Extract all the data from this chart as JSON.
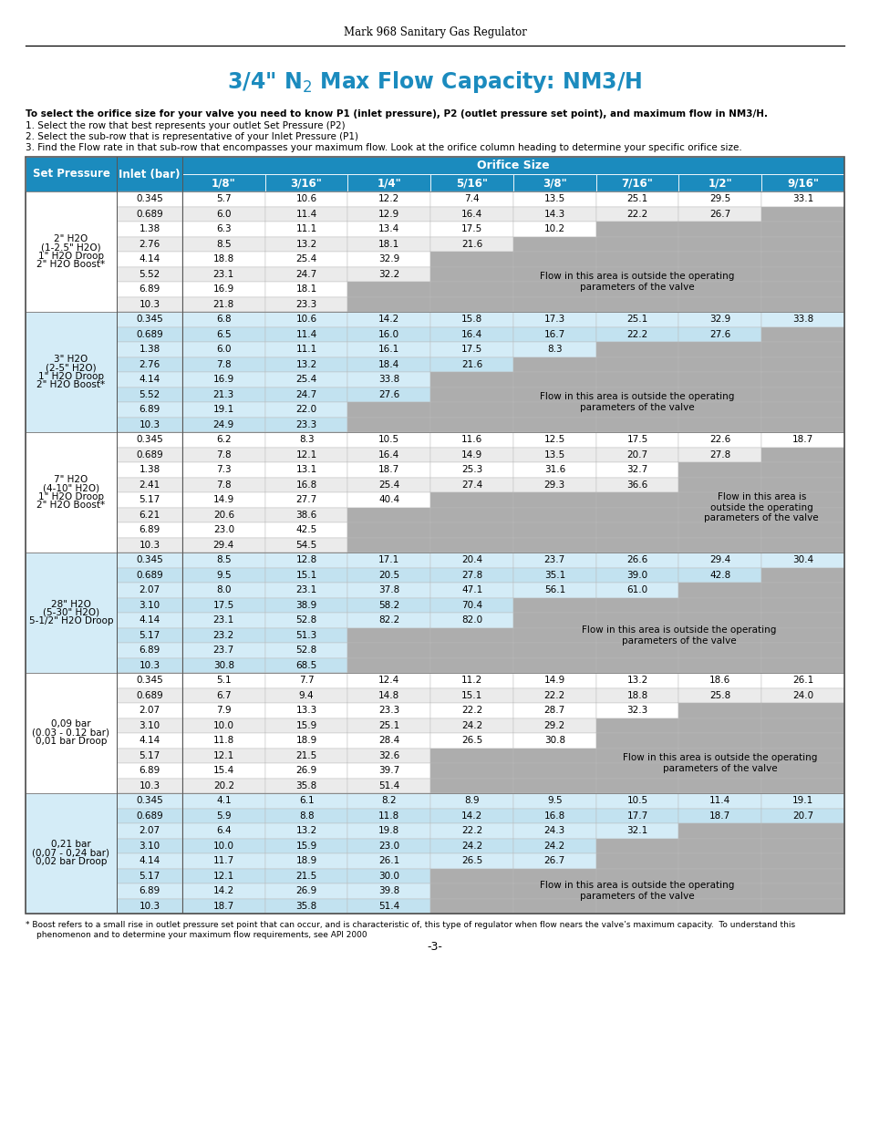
{
  "page_title": "Mark 968 Sanitary Gas Regulator",
  "header_bg": "#1B8BBE",
  "gray_bg": "#ADADAD",
  "row_bg_even_a": "#FFFFFF",
  "row_bg_odd_a": "#EBEBEB",
  "row_bg_even_b": "#D6EEF8",
  "row_bg_odd_b": "#C4E3F3",
  "footnote1": "* Boost refers to a small rise in outlet pressure set point that can occur, and is characteristic of, this type of regulator when flow nears the valve’s maximum capacity.  To understand this",
  "footnote2": "phenomenon and to determine your maximum flow requirements, see API 2000",
  "page_number": "-3-",
  "orifice_sizes": [
    "1/8\"",
    "3/16\"",
    "1/4\"",
    "5/16\"",
    "3/8\"",
    "7/16\"",
    "1/2\"",
    "9/16\""
  ],
  "sections": [
    {
      "label": [
        "2\" H2O",
        "(1-2.5\" H2O)",
        "1\" H2O Droop",
        "2\" H2O Boost*"
      ],
      "rows": [
        {
          "inlet": "0.345",
          "vals": [
            "5.7",
            "10.6",
            "12.2",
            "7.4",
            "13.5",
            "25.1",
            "29.5",
            "33.1"
          ],
          "gf": 99
        },
        {
          "inlet": "0.689",
          "vals": [
            "6.0",
            "11.4",
            "12.9",
            "16.4",
            "14.3",
            "22.2",
            "26.7",
            ""
          ],
          "gf": 7
        },
        {
          "inlet": "1.38",
          "vals": [
            "6.3",
            "11.1",
            "13.4",
            "17.5",
            "10.2",
            "",
            "",
            ""
          ],
          "gf": 5
        },
        {
          "inlet": "2.76",
          "vals": [
            "8.5",
            "13.2",
            "18.1",
            "21.6",
            "",
            "",
            "",
            ""
          ],
          "gf": 4
        },
        {
          "inlet": "4.14",
          "vals": [
            "18.8",
            "25.4",
            "32.9",
            "",
            "",
            "",
            "",
            ""
          ],
          "gf": 3
        },
        {
          "inlet": "5.52",
          "vals": [
            "23.1",
            "24.7",
            "32.2",
            "",
            "",
            "",
            "",
            ""
          ],
          "gf": 3
        },
        {
          "inlet": "6.89",
          "vals": [
            "16.9",
            "18.1",
            "",
            "",
            "",
            "",
            "",
            ""
          ],
          "gf": 2
        },
        {
          "inlet": "10.3",
          "vals": [
            "21.8",
            "23.3",
            "",
            "",
            "",
            "",
            "",
            ""
          ],
          "gf": 2
        }
      ],
      "flow_text": "Flow in this area is outside the operating\nparameters of the valve",
      "frs": 4,
      "fre": 7,
      "fcs": 3
    },
    {
      "label": [
        "3\" H2O",
        "(2-5\" H2O)",
        "1\" H2O Droop",
        "2\" H2O Boost*"
      ],
      "rows": [
        {
          "inlet": "0.345",
          "vals": [
            "6.8",
            "10.6",
            "14.2",
            "15.8",
            "17.3",
            "25.1",
            "32.9",
            "33.8"
          ],
          "gf": 99
        },
        {
          "inlet": "0.689",
          "vals": [
            "6.5",
            "11.4",
            "16.0",
            "16.4",
            "16.7",
            "22.2",
            "27.6",
            ""
          ],
          "gf": 7
        },
        {
          "inlet": "1.38",
          "vals": [
            "6.0",
            "11.1",
            "16.1",
            "17.5",
            "8.3",
            "",
            "",
            ""
          ],
          "gf": 5
        },
        {
          "inlet": "2.76",
          "vals": [
            "7.8",
            "13.2",
            "18.4",
            "21.6",
            "",
            "",
            "",
            ""
          ],
          "gf": 4
        },
        {
          "inlet": "4.14",
          "vals": [
            "16.9",
            "25.4",
            "33.8",
            "",
            "",
            "",
            "",
            ""
          ],
          "gf": 3
        },
        {
          "inlet": "5.52",
          "vals": [
            "21.3",
            "24.7",
            "27.6",
            "",
            "",
            "",
            "",
            ""
          ],
          "gf": 3
        },
        {
          "inlet": "6.89",
          "vals": [
            "19.1",
            "22.0",
            "",
            "",
            "",
            "",
            "",
            ""
          ],
          "gf": 2
        },
        {
          "inlet": "10.3",
          "vals": [
            "24.9",
            "23.3",
            "",
            "",
            "",
            "",
            "",
            ""
          ],
          "gf": 2
        }
      ],
      "flow_text": "Flow in this area is outside the operating\nparameters of the valve",
      "frs": 4,
      "fre": 7,
      "fcs": 3
    },
    {
      "label": [
        "7\" H2O",
        "(4-10\" H2O)",
        "1\" H2O Droop",
        "2\" H2O Boost*"
      ],
      "rows": [
        {
          "inlet": "0.345",
          "vals": [
            "6.2",
            "8.3",
            "10.5",
            "11.6",
            "12.5",
            "17.5",
            "22.6",
            "18.7"
          ],
          "gf": 99
        },
        {
          "inlet": "0.689",
          "vals": [
            "7.8",
            "12.1",
            "16.4",
            "14.9",
            "13.5",
            "20.7",
            "27.8",
            ""
          ],
          "gf": 7
        },
        {
          "inlet": "1.38",
          "vals": [
            "7.3",
            "13.1",
            "18.7",
            "25.3",
            "31.6",
            "32.7",
            "",
            ""
          ],
          "gf": 6
        },
        {
          "inlet": "2.41",
          "vals": [
            "7.8",
            "16.8",
            "25.4",
            "27.4",
            "29.3",
            "36.6",
            "",
            ""
          ],
          "gf": 6
        },
        {
          "inlet": "5.17",
          "vals": [
            "14.9",
            "27.7",
            "40.4",
            "",
            "",
            "",
            "",
            ""
          ],
          "gf": 3
        },
        {
          "inlet": "6.21",
          "vals": [
            "20.6",
            "38.6",
            "",
            "",
            "",
            "",
            "",
            ""
          ],
          "gf": 2
        },
        {
          "inlet": "6.89",
          "vals": [
            "23.0",
            "42.5",
            "",
            "",
            "",
            "",
            "",
            ""
          ],
          "gf": 2
        },
        {
          "inlet": "10.3",
          "vals": [
            "29.4",
            "54.5",
            "",
            "",
            "",
            "",
            "",
            ""
          ],
          "gf": 2
        }
      ],
      "flow_text": "Flow in this area is\noutside the operating\nparameters of the valve",
      "frs": 2,
      "fre": 7,
      "fcs": 6
    },
    {
      "label": [
        "28\" H2O",
        "(5-30\" H2O)",
        "5-1/2\" H2O Droop",
        ""
      ],
      "rows": [
        {
          "inlet": "0.345",
          "vals": [
            "8.5",
            "12.8",
            "17.1",
            "20.4",
            "23.7",
            "26.6",
            "29.4",
            "30.4"
          ],
          "gf": 99
        },
        {
          "inlet": "0.689",
          "vals": [
            "9.5",
            "15.1",
            "20.5",
            "27.8",
            "35.1",
            "39.0",
            "42.8",
            ""
          ],
          "gf": 7
        },
        {
          "inlet": "2.07",
          "vals": [
            "8.0",
            "23.1",
            "37.8",
            "47.1",
            "56.1",
            "61.0",
            "",
            ""
          ],
          "gf": 6
        },
        {
          "inlet": "3.10",
          "vals": [
            "17.5",
            "38.9",
            "58.2",
            "70.4",
            "",
            "",
            "",
            ""
          ],
          "gf": 4
        },
        {
          "inlet": "4.14",
          "vals": [
            "23.1",
            "52.8",
            "82.2",
            "82.0",
            "",
            "",
            "",
            ""
          ],
          "gf": 4
        },
        {
          "inlet": "5.17",
          "vals": [
            "23.2",
            "51.3",
            "",
            "",
            "",
            "",
            "",
            ""
          ],
          "gf": 2
        },
        {
          "inlet": "6.89",
          "vals": [
            "23.7",
            "52.8",
            "",
            "",
            "",
            "",
            "",
            ""
          ],
          "gf": 2
        },
        {
          "inlet": "10.3",
          "vals": [
            "30.8",
            "68.5",
            "",
            "",
            "",
            "",
            "",
            ""
          ],
          "gf": 2
        }
      ],
      "flow_text": "Flow in this area is outside the operating\nparameters of the valve",
      "frs": 3,
      "fre": 7,
      "fcs": 4
    },
    {
      "label": [
        "0,09 bar",
        "(0.03 - 0.12 bar)",
        "0,01 bar Droop",
        ""
      ],
      "rows": [
        {
          "inlet": "0.345",
          "vals": [
            "5.1",
            "7.7",
            "12.4",
            "11.2",
            "14.9",
            "13.2",
            "18.6",
            "26.1"
          ],
          "gf": 99
        },
        {
          "inlet": "0.689",
          "vals": [
            "6.7",
            "9.4",
            "14.8",
            "15.1",
            "22.2",
            "18.8",
            "25.8",
            "24.0"
          ],
          "gf": 99
        },
        {
          "inlet": "2.07",
          "vals": [
            "7.9",
            "13.3",
            "23.3",
            "22.2",
            "28.7",
            "32.3",
            "",
            ""
          ],
          "gf": 6
        },
        {
          "inlet": "3.10",
          "vals": [
            "10.0",
            "15.9",
            "25.1",
            "24.2",
            "29.2",
            "",
            "",
            ""
          ],
          "gf": 5
        },
        {
          "inlet": "4.14",
          "vals": [
            "11.8",
            "18.9",
            "28.4",
            "26.5",
            "30.8",
            "",
            "",
            ""
          ],
          "gf": 5
        },
        {
          "inlet": "5.17",
          "vals": [
            "12.1",
            "21.5",
            "32.6",
            "",
            "",
            "",
            "",
            ""
          ],
          "gf": 3
        },
        {
          "inlet": "6.89",
          "vals": [
            "15.4",
            "26.9",
            "39.7",
            "",
            "",
            "",
            "",
            ""
          ],
          "gf": 3
        },
        {
          "inlet": "10.3",
          "vals": [
            "20.2",
            "35.8",
            "51.4",
            "",
            "",
            "",
            "",
            ""
          ],
          "gf": 3
        }
      ],
      "flow_text": "Flow in this area is outside the operating\nparameters of the valve",
      "frs": 4,
      "fre": 7,
      "fcs": 5
    },
    {
      "label": [
        "0,21 bar",
        "(0,07 - 0,24 bar)",
        "0,02 bar Droop",
        ""
      ],
      "rows": [
        {
          "inlet": "0.345",
          "vals": [
            "4.1",
            "6.1",
            "8.2",
            "8.9",
            "9.5",
            "10.5",
            "11.4",
            "19.1"
          ],
          "gf": 99
        },
        {
          "inlet": "0.689",
          "vals": [
            "5.9",
            "8.8",
            "11.8",
            "14.2",
            "16.8",
            "17.7",
            "18.7",
            "20.7"
          ],
          "gf": 99
        },
        {
          "inlet": "2.07",
          "vals": [
            "6.4",
            "13.2",
            "19.8",
            "22.2",
            "24.3",
            "32.1",
            "",
            ""
          ],
          "gf": 6
        },
        {
          "inlet": "3.10",
          "vals": [
            "10.0",
            "15.9",
            "23.0",
            "24.2",
            "24.2",
            "",
            "",
            ""
          ],
          "gf": 5
        },
        {
          "inlet": "4.14",
          "vals": [
            "11.7",
            "18.9",
            "26.1",
            "26.5",
            "26.7",
            "",
            "",
            ""
          ],
          "gf": 5
        },
        {
          "inlet": "5.17",
          "vals": [
            "12.1",
            "21.5",
            "30.0",
            "",
            "",
            "",
            "",
            ""
          ],
          "gf": 3
        },
        {
          "inlet": "6.89",
          "vals": [
            "14.2",
            "26.9",
            "39.8",
            "",
            "",
            "",
            "",
            ""
          ],
          "gf": 3
        },
        {
          "inlet": "10.3",
          "vals": [
            "18.7",
            "35.8",
            "51.4",
            "",
            "",
            "",
            "",
            ""
          ],
          "gf": 3
        }
      ],
      "flow_text": "Flow in this area is outside the operating\nparameters of the valve",
      "frs": 5,
      "fre": 7,
      "fcs": 3
    }
  ]
}
